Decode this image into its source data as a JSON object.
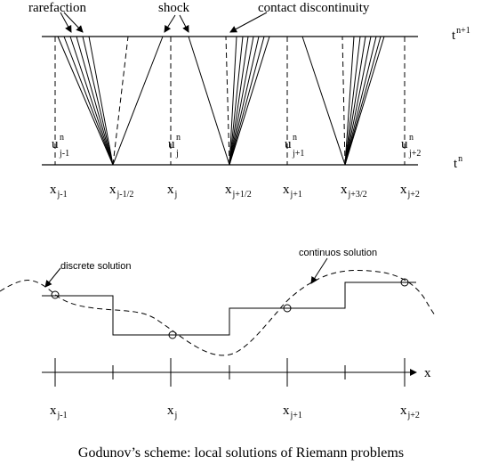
{
  "top": {
    "annotations": {
      "rarefaction": "rarefaction",
      "shock": "shock",
      "contact": "contact discontinuity"
    },
    "time_labels": {
      "upper": {
        "base": "t",
        "sup": "n+1"
      },
      "lower": {
        "base": "t",
        "sup": "n"
      }
    },
    "u_labels": [
      {
        "base": "u",
        "sup": "n",
        "sub": "j-1"
      },
      {
        "base": "u",
        "sup": "n",
        "sub": "j"
      },
      {
        "base": "u",
        "sup": "n",
        "sub": "j+1"
      },
      {
        "base": "u",
        "sup": "n",
        "sub": "j+2"
      }
    ],
    "x_labels": [
      {
        "base": "x",
        "sub": "j-1"
      },
      {
        "base": "x",
        "sub": "j-1/2"
      },
      {
        "base": "x",
        "sub": "j"
      },
      {
        "base": "x",
        "sub": "j+1/2"
      },
      {
        "base": "x",
        "sub": "j+1"
      },
      {
        "base": "x",
        "sub": "j+3/2"
      },
      {
        "base": "x",
        "sub": "j+2"
      }
    ]
  },
  "bottom": {
    "annotations": {
      "discrete": "discrete solution",
      "continuous": "continuos solution"
    },
    "axis_label": "x",
    "x_labels": [
      {
        "base": "x",
        "sub": "j-1"
      },
      {
        "base": "x",
        "sub": "j"
      },
      {
        "base": "x",
        "sub": "j+1"
      },
      {
        "base": "x",
        "sub": "j+2"
      }
    ]
  },
  "caption": "Godunov’s scheme: local solutions of Riemann problems"
}
